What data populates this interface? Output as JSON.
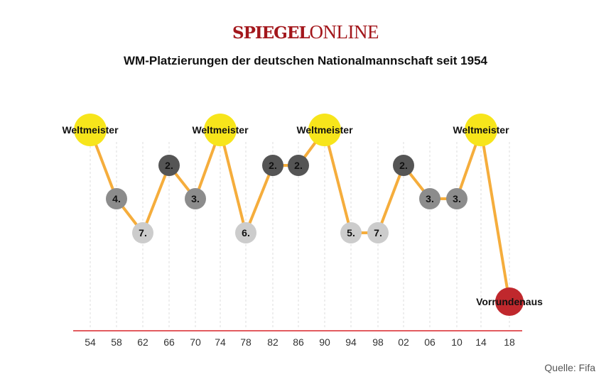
{
  "logo": {
    "part1": "SPIEGEL",
    "part2": "ONLINE"
  },
  "source": "Quelle: Fifa",
  "chart_data": {
    "type": "line",
    "title": "WM-Platzierungen der deutschen Nationalmannschaft seit 1954",
    "categories": [
      "54",
      "58",
      "62",
      "66",
      "70",
      "74",
      "78",
      "82",
      "86",
      "90",
      "94",
      "98",
      "02",
      "06",
      "10",
      "14",
      "18"
    ],
    "placements": [
      1,
      4,
      7,
      2,
      3,
      1,
      6,
      2,
      2,
      1,
      5,
      7,
      2,
      3,
      3,
      1,
      0
    ],
    "labels": [
      "Weltmeister",
      "4.",
      "7.",
      "2.",
      "3.",
      "Weltmeister",
      "6.",
      "2.",
      "2.",
      "Weltmeister",
      "5.",
      "7.",
      "2.",
      "3.",
      "3.",
      "Weltmeister",
      "Vorrundenaus"
    ],
    "colors": {
      "line": "#f5ad3c",
      "champion": "#f7e51b",
      "second": "#555555",
      "third_fourth": "#8c8c8c",
      "lower": "#cccccc",
      "out": "#c0282d",
      "axis": "#d9252a"
    }
  }
}
